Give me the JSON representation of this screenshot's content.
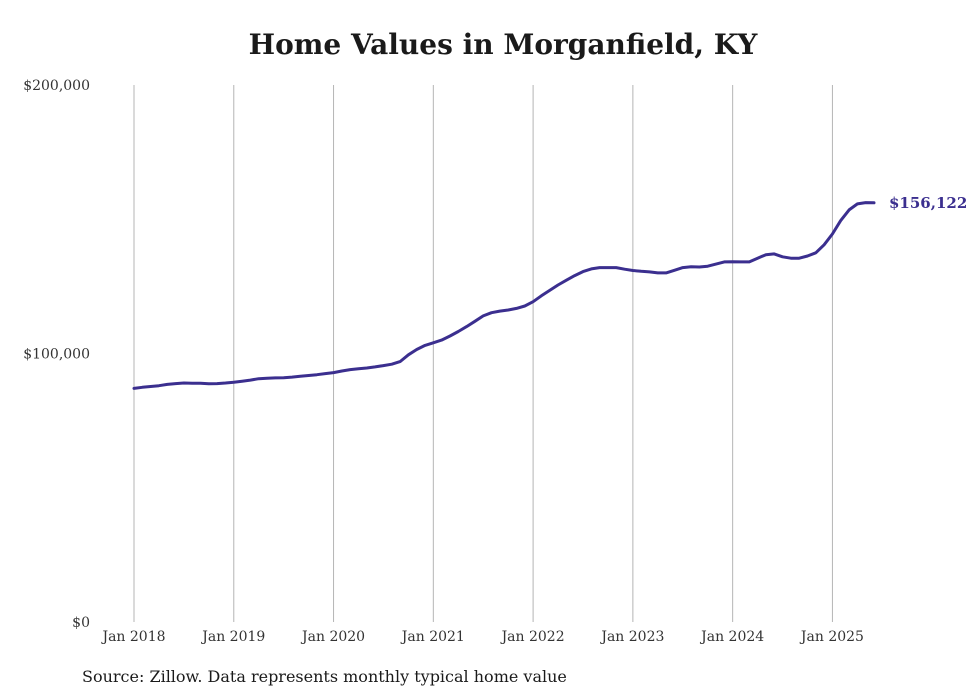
{
  "chart_data": {
    "type": "line",
    "title": "Home Values in Morganfield, KY",
    "xlabel": "",
    "ylabel": "",
    "ylim": [
      0,
      200000
    ],
    "yticks": [
      0,
      100000,
      200000
    ],
    "ytick_labels": [
      "$0",
      "$100,000",
      "$200,000"
    ],
    "xlim": [
      "2018-01",
      "2025-06"
    ],
    "xticks": [
      "2018-01",
      "2019-01",
      "2020-01",
      "2021-01",
      "2022-01",
      "2023-01",
      "2024-01",
      "2025-01"
    ],
    "xtick_labels": [
      "Jan 2018",
      "Jan 2019",
      "Jan 2020",
      "Jan 2021",
      "Jan 2022",
      "Jan 2023",
      "Jan 2024",
      "Jan 2025"
    ],
    "grid": "vertical",
    "color": "#3b2f8f",
    "end_label": "$156,122",
    "series": [
      {
        "x": [
          "2018-01",
          "2018-02",
          "2018-03",
          "2018-04",
          "2018-05",
          "2018-06",
          "2018-07",
          "2018-08",
          "2018-09",
          "2018-10",
          "2018-11",
          "2018-12",
          "2019-01",
          "2019-02",
          "2019-03",
          "2019-04",
          "2019-05",
          "2019-06",
          "2019-07",
          "2019-08",
          "2019-09",
          "2019-10",
          "2019-11",
          "2019-12",
          "2020-01",
          "2020-02",
          "2020-03",
          "2020-04",
          "2020-05",
          "2020-06",
          "2020-07",
          "2020-08",
          "2020-09",
          "2020-10",
          "2020-11",
          "2020-12",
          "2021-01",
          "2021-02",
          "2021-03",
          "2021-04",
          "2021-05",
          "2021-06",
          "2021-07",
          "2021-08",
          "2021-09",
          "2021-10",
          "2021-11",
          "2021-12",
          "2022-01",
          "2022-02",
          "2022-03",
          "2022-04",
          "2022-05",
          "2022-06",
          "2022-07",
          "2022-08",
          "2022-09",
          "2022-10",
          "2022-11",
          "2022-12",
          "2023-01",
          "2023-02",
          "2023-03",
          "2023-04",
          "2023-05",
          "2023-06",
          "2023-07",
          "2023-08",
          "2023-09",
          "2023-10",
          "2023-11",
          "2023-12",
          "2024-01",
          "2024-02",
          "2024-03",
          "2024-04",
          "2024-05",
          "2024-06",
          "2024-07",
          "2024-08",
          "2024-09",
          "2024-10",
          "2024-11",
          "2024-12",
          "2025-01",
          "2025-02",
          "2025-03",
          "2025-04",
          "2025-05",
          "2025-06"
        ],
        "values": [
          87000,
          87400,
          87700,
          88000,
          88500,
          88800,
          89000,
          88900,
          88900,
          88700,
          88800,
          89000,
          89300,
          89700,
          90100,
          90600,
          90800,
          90900,
          91000,
          91200,
          91500,
          91800,
          92100,
          92500,
          92900,
          93500,
          94000,
          94300,
          94600,
          95000,
          95500,
          96000,
          97000,
          99500,
          101500,
          103000,
          104000,
          105000,
          106500,
          108200,
          110000,
          112000,
          114000,
          115200,
          115800,
          116200,
          116800,
          117700,
          119300,
          121500,
          123500,
          125500,
          127300,
          129000,
          130500,
          131500,
          132000,
          132000,
          132000,
          131400,
          130900,
          130600,
          130400,
          130000,
          130000,
          131000,
          132000,
          132300,
          132200,
          132500,
          133300,
          134100,
          134200,
          134100,
          134100,
          135500,
          136800,
          137100,
          136000,
          135500,
          135500,
          136300,
          137500,
          140500,
          144500,
          149500,
          153500,
          155700,
          156200,
          156122
        ]
      }
    ]
  },
  "source": "Source: Zillow. Data represents monthly typical home value"
}
